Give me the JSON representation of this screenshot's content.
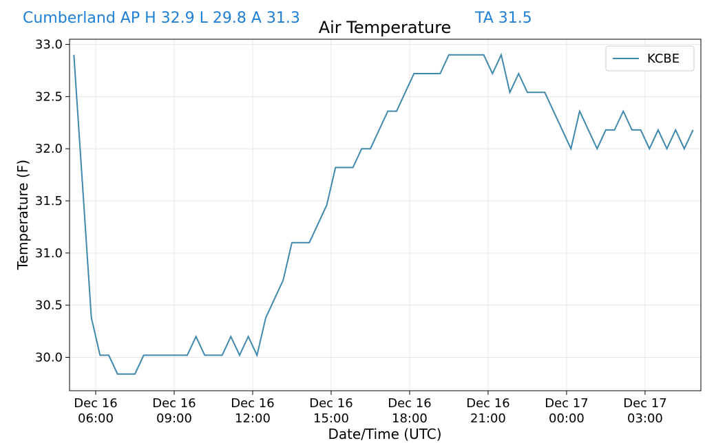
{
  "header": {
    "station": "Cumberland AP H 32.9 L 29.8 A 31.3",
    "extra": "TA 31.5"
  },
  "chart_data": {
    "type": "line",
    "title": "Air Temperature",
    "xlabel": "Date/Time (UTC)",
    "ylabel": "Temperature (F)",
    "x": [
      "Dec 16 05:10",
      "Dec 16 05:50",
      "Dec 16 06:10",
      "Dec 16 06:30",
      "Dec 16 06:50",
      "Dec 16 07:30",
      "Dec 16 07:50",
      "Dec 16 09:30",
      "Dec 16 09:50",
      "Dec 16 10:10",
      "Dec 16 10:50",
      "Dec 16 11:10",
      "Dec 16 11:30",
      "Dec 16 11:50",
      "Dec 16 12:10",
      "Dec 16 12:30",
      "Dec 16 13:10",
      "Dec 16 13:30",
      "Dec 16 14:10",
      "Dec 16 14:50",
      "Dec 16 15:10",
      "Dec 16 15:50",
      "Dec 16 16:10",
      "Dec 16 16:30",
      "Dec 16 17:10",
      "Dec 16 17:30",
      "Dec 16 18:10",
      "Dec 16 19:10",
      "Dec 16 19:30",
      "Dec 16 20:50",
      "Dec 16 21:10",
      "Dec 16 21:30",
      "Dec 16 21:50",
      "Dec 16 22:10",
      "Dec 16 22:30",
      "Dec 16 23:10",
      "Dec 17 00:10",
      "Dec 17 00:30",
      "Dec 17 01:10",
      "Dec 17 01:30",
      "Dec 17 01:50",
      "Dec 17 02:10",
      "Dec 17 02:30",
      "Dec 17 02:50",
      "Dec 17 03:10",
      "Dec 17 03:30",
      "Dec 17 03:50",
      "Dec 17 04:10",
      "Dec 17 04:30",
      "Dec 17 04:50"
    ],
    "series": [
      {
        "name": "KCBE",
        "color": "#3f88ad",
        "values": [
          32.9,
          30.38,
          30.02,
          30.02,
          29.84,
          29.84,
          30.02,
          30.02,
          30.2,
          30.02,
          30.02,
          30.2,
          30.02,
          30.2,
          30.02,
          30.38,
          30.74,
          31.1,
          31.1,
          31.46,
          31.82,
          31.82,
          32.0,
          32.0,
          32.36,
          32.36,
          32.72,
          32.72,
          32.9,
          32.9,
          32.72,
          32.9,
          32.54,
          32.72,
          32.54,
          32.54,
          32.0,
          32.36,
          32.0,
          32.18,
          32.18,
          32.36,
          32.18,
          32.18,
          32.0,
          32.18,
          32.0,
          32.18,
          32.0,
          32.18
        ]
      }
    ],
    "xlim": [
      "Dec 16 05:00",
      "Dec 17 05:08"
    ],
    "xticks": [
      {
        "value": "Dec 16 06:00",
        "label": "Dec 16\n06:00"
      },
      {
        "value": "Dec 16 09:00",
        "label": "Dec 16\n09:00"
      },
      {
        "value": "Dec 16 12:00",
        "label": "Dec 16\n12:00"
      },
      {
        "value": "Dec 16 15:00",
        "label": "Dec 16\n15:00"
      },
      {
        "value": "Dec 16 18:00",
        "label": "Dec 16\n18:00"
      },
      {
        "value": "Dec 16 21:00",
        "label": "Dec 16\n21:00"
      },
      {
        "value": "Dec 17 00:00",
        "label": "Dec 17\n00:00"
      },
      {
        "value": "Dec 17 03:00",
        "label": "Dec 17\n03:00"
      }
    ],
    "ylim": [
      29.68,
      33.05
    ],
    "yticks": [
      {
        "value": 30,
        "label": "30.0"
      },
      30.5,
      {
        "value": 31,
        "label": "31.0"
      },
      31.5,
      {
        "value": 32,
        "label": "32.0"
      },
      32.5,
      {
        "value": 33,
        "label": "33.0"
      }
    ],
    "grid": true,
    "legend": "upper right"
  }
}
